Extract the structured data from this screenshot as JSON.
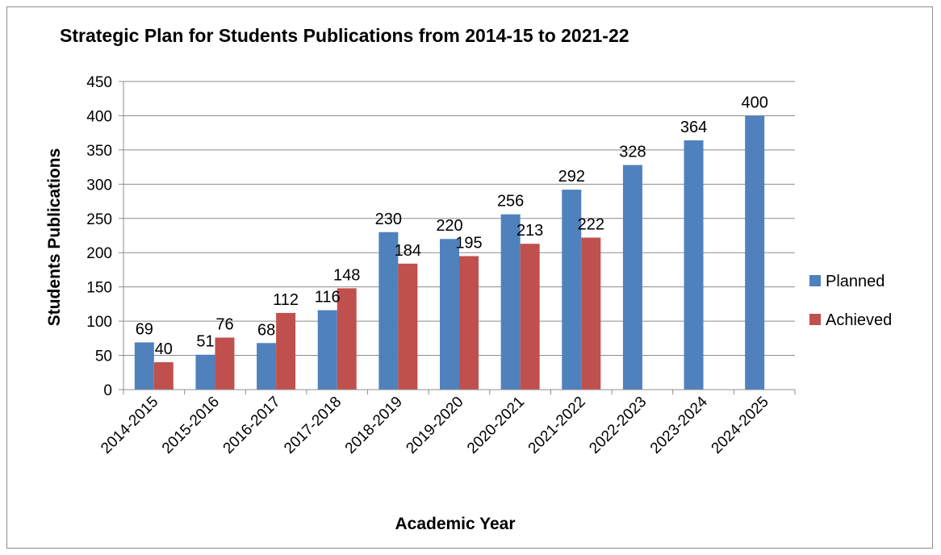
{
  "chart_data": {
    "type": "bar",
    "title": "Strategic Plan for Students Publications from 2014-15 to 2021-22",
    "xlabel": "Academic Year",
    "ylabel": "Students Publications",
    "ylim": [
      0,
      450
    ],
    "ytick_step": 50,
    "grid": true,
    "legend_position": "right",
    "categories": [
      "2014-2015",
      "2015-2016",
      "2016-2017",
      "2017-2018",
      "2018-2019",
      "2019-2020",
      "2020-2021",
      "2021-2022",
      "2022-2023",
      "2023-2024",
      "2024-2025"
    ],
    "series": [
      {
        "name": "Planned",
        "color": "#4f81bd",
        "values": [
          69,
          51,
          68,
          116,
          230,
          220,
          256,
          292,
          328,
          364,
          400
        ]
      },
      {
        "name": "Achieved",
        "color": "#c0504d",
        "values": [
          40,
          76,
          112,
          148,
          184,
          195,
          213,
          222,
          null,
          null,
          null
        ]
      }
    ]
  }
}
